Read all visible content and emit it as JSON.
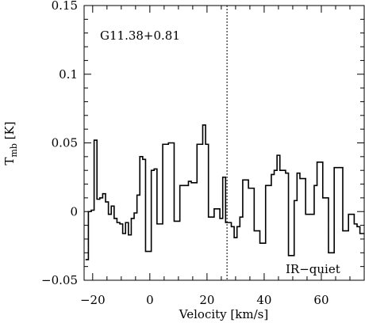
{
  "chart_data": {
    "type": "line",
    "step": true,
    "title": "",
    "xlabel": "Velocity [km/s]",
    "ylabel": "T_mb [K]",
    "ylabel_main": "T",
    "ylabel_sub": "mb",
    "ylabel_unit": " [K]",
    "xlim": [
      -23,
      75
    ],
    "ylim": [
      -0.05,
      0.15
    ],
    "x_ticks": [
      -20,
      0,
      20,
      40,
      60
    ],
    "x_tick_labels": [
      "−20",
      "0",
      "20",
      "40",
      "60"
    ],
    "y_ticks": [
      -0.05,
      0,
      0.05,
      0.1,
      0.15
    ],
    "y_tick_labels": [
      "−0.05",
      "0",
      "0.05",
      "0.1",
      "0.15"
    ],
    "grid": false,
    "source_label": "G11.38+0.81",
    "class_label": "IR−quiet",
    "reference_velocity": 27,
    "series": [
      {
        "x": [
          -22,
          -21,
          -20,
          -19,
          -18,
          -17,
          -16,
          -15,
          -14,
          -13,
          -12,
          -11,
          -10,
          -9,
          -8,
          -7,
          -6,
          -5,
          -4,
          -3,
          -2,
          -1,
          0,
          1,
          2,
          3,
          4,
          5,
          6,
          7,
          8,
          9,
          10,
          11,
          12,
          13,
          14,
          15,
          16,
          17,
          18,
          19,
          20,
          21,
          22,
          23,
          24,
          25,
          26,
          27,
          28,
          29,
          30,
          31,
          32,
          33,
          34,
          35,
          36,
          37,
          38,
          39,
          40,
          41,
          42,
          43,
          44,
          45,
          46,
          47,
          48,
          49,
          50,
          51,
          52,
          53,
          54,
          55,
          56,
          57,
          58,
          59,
          60,
          61,
          62,
          63,
          64,
          65,
          66,
          67,
          68,
          69,
          70,
          71,
          72,
          73,
          74,
          75
        ],
        "values": [
          -0.035,
          0,
          0.001,
          0.052,
          0.009,
          0.01,
          0.013,
          0.007,
          -0.002,
          0.004,
          -0.005,
          -0.008,
          -0.009,
          -0.016,
          -0.008,
          -0.017,
          -0.005,
          -0.001,
          0.012,
          0.04,
          0.038,
          -0.029,
          -0.029,
          0.03,
          0.031,
          -0.009,
          -0.009,
          0.049,
          0.049,
          0.05,
          0.05,
          -0.007,
          -0.007,
          0.019,
          0.019,
          0.019,
          0.022,
          0.021,
          0.021,
          0.049,
          0.049,
          0.063,
          0.049,
          -0.004,
          -0.004,
          0.002,
          0.002,
          -0.005,
          0.025,
          -0.008,
          -0.008,
          -0.011,
          -0.019,
          -0.011,
          -0.004,
          0.023,
          0.023,
          0.017,
          0.017,
          -0.014,
          -0.014,
          -0.023,
          -0.023,
          0.019,
          0.019,
          0.027,
          0.03,
          0.041,
          0.03,
          0.03,
          0.028,
          -0.032,
          -0.032,
          0.008,
          0.028,
          0.024,
          0.024,
          -0.002,
          -0.002,
          -0.002,
          0.019,
          0.036,
          0.036,
          0.01,
          0.01,
          -0.03,
          -0.03,
          0.032,
          0.032,
          0.032,
          -0.014,
          -0.014,
          -0.002,
          -0.002,
          -0.009,
          -0.011,
          -0.016,
          -0.016
        ]
      }
    ]
  }
}
